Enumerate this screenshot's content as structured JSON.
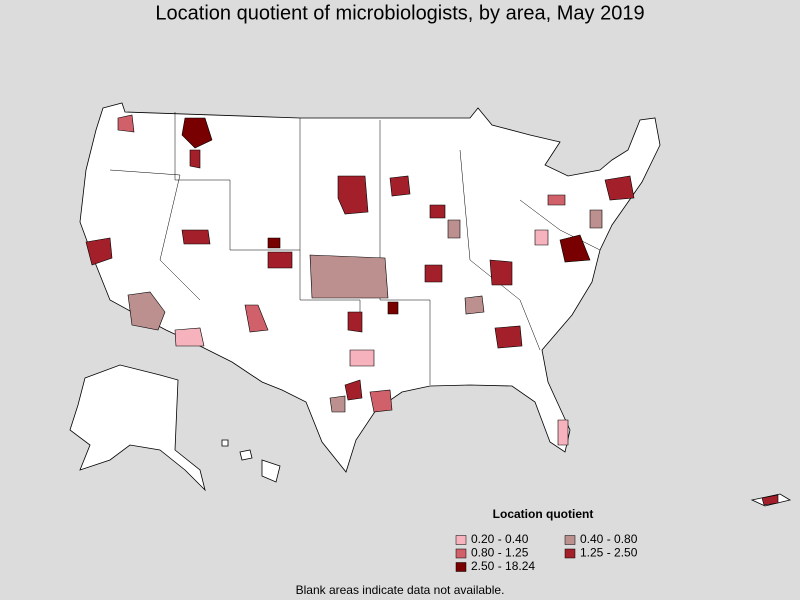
{
  "title": "Location quotient of microbiologists, by area, May 2019",
  "legend": {
    "title": "Location quotient",
    "items": [
      {
        "label": "0.20 - 0.40",
        "color": "#f7b3bd"
      },
      {
        "label": "0.40 - 0.80",
        "color": "#bd9090"
      },
      {
        "label": "0.80 - 1.25",
        "color": "#d0616b"
      },
      {
        "label": "1.25 - 2.50",
        "color": "#a3202b"
      },
      {
        "label": "2.50 - 18.24",
        "color": "#780000"
      }
    ]
  },
  "footnote": "Blank areas indicate data not available."
}
